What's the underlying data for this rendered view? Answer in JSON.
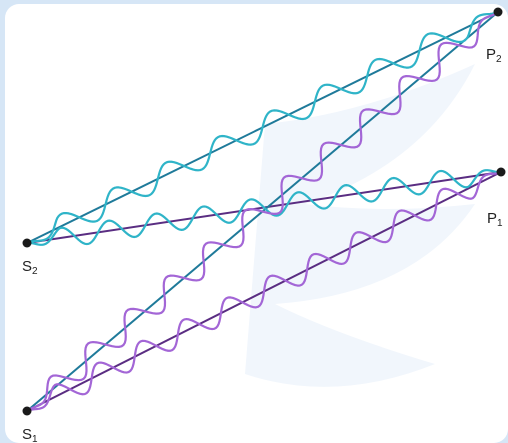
{
  "colors": {
    "background": "#d6e6f6",
    "card": "#ffffff",
    "direct_line_teal": "#1f7a9a",
    "direct_line_purple": "#5a2d82",
    "wave_cyan": "#2fb4c8",
    "wave_purple": "#a366d6",
    "point": "#1a1a1a",
    "watermark": "#eef3fa"
  },
  "points": {
    "S1": {
      "letter": "S",
      "sub": "1"
    },
    "S2": {
      "letter": "S",
      "sub": "2"
    },
    "P1": {
      "letter": "P",
      "sub": "1"
    },
    "P2": {
      "letter": "P",
      "sub": "2"
    }
  },
  "paths": [
    {
      "id": "s2-p2",
      "from": "S2",
      "to": "P2",
      "wave": "cyan"
    },
    {
      "id": "s2-p1",
      "from": "S2",
      "to": "P1",
      "wave": "cyan"
    },
    {
      "id": "s1-p2",
      "from": "S1",
      "to": "P2",
      "wave": "purple"
    },
    {
      "id": "s1-p1",
      "from": "S1",
      "to": "P1",
      "wave": "purple"
    }
  ]
}
